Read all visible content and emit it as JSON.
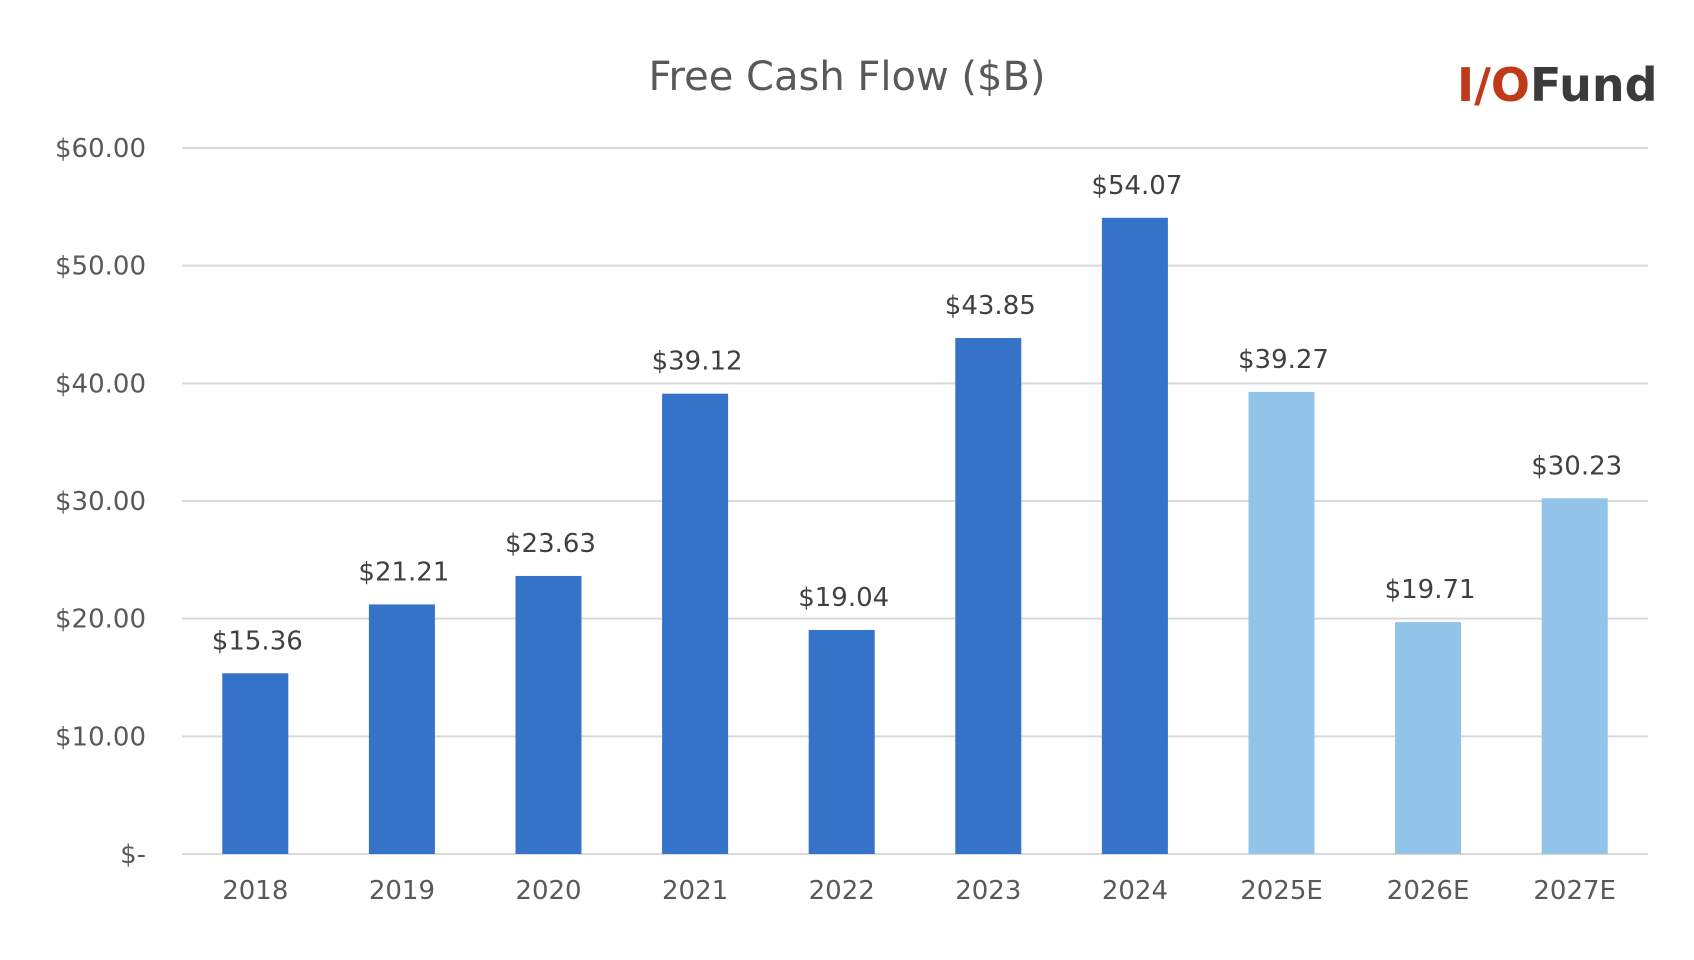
{
  "logo": {
    "text": "I/OFund",
    "parts": [
      "I/",
      "O",
      "Fund"
    ],
    "colors": {
      "accent": "#c0391b",
      "dark": "#3b3b3b"
    }
  },
  "colors": {
    "actual": "#3473c8",
    "estimate": "#92c3e8",
    "grid": "#d9d9d9",
    "text": "#595959"
  },
  "chart_data": {
    "type": "bar",
    "title": "Free Cash Flow ($B)",
    "xlabel": "",
    "ylabel": "",
    "categories": [
      "2018",
      "2019",
      "2020",
      "2021",
      "2022",
      "2023",
      "2024",
      "2025E",
      "2026E",
      "2027E"
    ],
    "values": [
      15.36,
      21.21,
      23.63,
      39.12,
      19.04,
      43.85,
      54.07,
      39.27,
      19.71,
      30.23
    ],
    "data_labels": [
      "$15.36",
      "$21.21",
      "$23.63",
      "$39.12",
      "$19.04",
      "$43.85",
      "$54.07",
      "$39.27",
      "$19.71",
      "$30.23"
    ],
    "estimate": [
      false,
      false,
      false,
      false,
      false,
      false,
      false,
      true,
      true,
      true
    ],
    "ylim": [
      0,
      60
    ],
    "yticks": [
      0,
      10,
      20,
      30,
      40,
      50,
      60
    ],
    "ytick_labels": [
      "$-",
      "$10.00",
      "$20.00",
      "$30.00",
      "$40.00",
      "$50.00",
      "$60.00"
    ],
    "grid": true,
    "legend": "none"
  }
}
